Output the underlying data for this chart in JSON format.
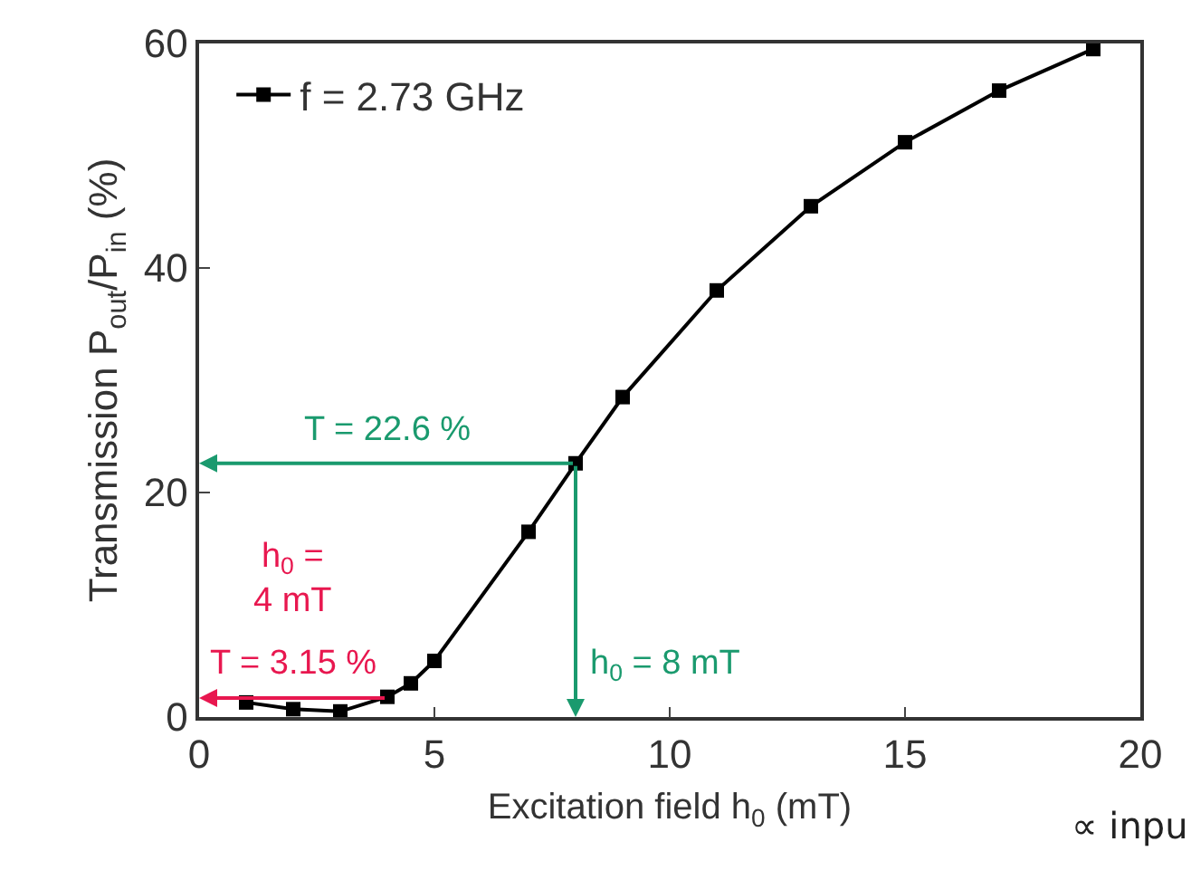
{
  "chart_data": {
    "type": "line",
    "xlabel": "Excitation field h$_{0}$ (mT)",
    "ylabel": "Transmission P$_{out}$/P$_{in}$ (%)",
    "x": [
      1,
      2,
      3,
      4,
      4.5,
      5,
      7,
      8,
      9,
      11,
      13,
      15,
      17,
      19
    ],
    "series": [
      {
        "name": "f = 2.73 GHz",
        "color": "#000000",
        "values": [
          1.3,
          0.7,
          0.5,
          1.8,
          3.0,
          5.0,
          16.5,
          22.6,
          28.5,
          38.0,
          45.5,
          51.2,
          55.8,
          59.5
        ]
      }
    ],
    "xlim": [
      0,
      20
    ],
    "xticks": [
      0,
      5,
      10,
      15,
      20
    ],
    "ylim": [
      0,
      60
    ],
    "yticks": [
      0,
      20,
      40,
      60
    ],
    "marker": "square",
    "line_style": "solid",
    "legend": "top left",
    "annotations": [
      "T = 22.6 %",
      {
        "text": "h$_{0}$ = 8 mT",
        "x": 8,
        "y": 22.6
      },
      {
        "text": "T = 3.15 %",
        "x": 4,
        "y": 1.7
      },
      "h$_{0}$ =\n4 mT",
      "∝ inpu"
    ]
  }
}
